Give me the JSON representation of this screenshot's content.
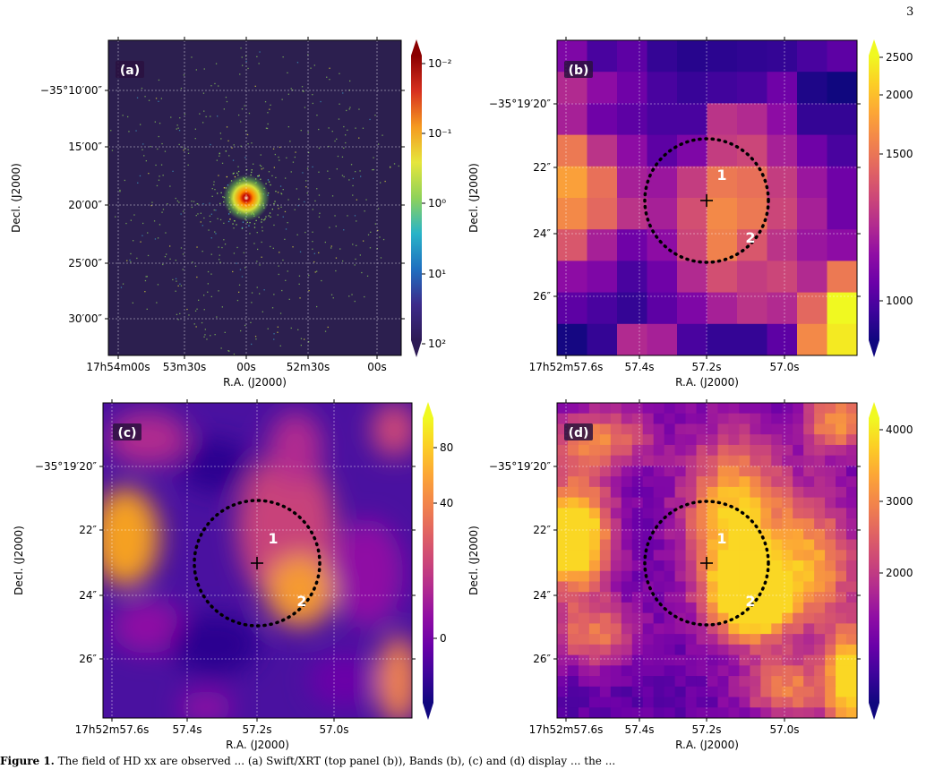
{
  "page_number": "3",
  "caption": {
    "label": "Figure 1.",
    "text": " The field of HD xx  are observed ... (a) Swift/XRT (top panel (b)), Bands (b), (c) and (d) display ... the ..."
  },
  "colors": {
    "colormap_a": [
      "#2d1a55",
      "#3c2a8a",
      "#1f6fc0",
      "#28b4c8",
      "#8fd25a",
      "#e6e63c",
      "#f59a20",
      "#d7301f",
      "#8b0000"
    ],
    "colormap_plasma": [
      "#10077f",
      "#3d049b",
      "#6a00a8",
      "#8f0da4",
      "#b12a90",
      "#cc4778",
      "#e16462",
      "#f2844b",
      "#fca636",
      "#fcce25",
      "#f0f921"
    ],
    "panel_a_background": "#2c1f4f",
    "marker": "#000000",
    "source_label": "#ffffff"
  },
  "chart_data": [
    {
      "type": "heatmap",
      "panel_label": "(a)",
      "xlabel": "R.A. (J2000)",
      "ylabel": "Decl. (J2000)",
      "xticks": [
        "17h54m00s",
        "53m30s",
        "00s",
        "52m30s",
        "00s"
      ],
      "yticks": [
        "−35°10′00″",
        "15′00″",
        "20′00″",
        "25′00″",
        "30′00″"
      ],
      "colorbar": {
        "scale": "log",
        "ticks": [
          "10⁻²",
          "10⁻¹",
          "10⁰",
          "10¹",
          "10²"
        ],
        "extend": "both"
      },
      "grid": true,
      "source": {
        "ra": "17h52m57.3s",
        "dec": "−35°19′23″",
        "description": "bright central source"
      }
    },
    {
      "type": "heatmap",
      "panel_label": "(b)",
      "xlabel": "R.A. (J2000)",
      "ylabel": "Decl. (J2000)",
      "xticks": [
        "17h52m57.6s",
        "57.4s",
        "57.2s",
        "57.0s"
      ],
      "yticks": [
        "−35°19′20″",
        "22″",
        "24″",
        "26″"
      ],
      "colorbar": {
        "scale": "log",
        "ticks": [
          "1000",
          "1500",
          "2000",
          "2500"
        ],
        "range": [
          870,
          2600
        ],
        "extend": "both"
      },
      "grid": true,
      "cells": [
        [
          1150,
          1000,
          1050,
          950,
          920,
          930,
          940,
          950,
          1000,
          1050
        ],
        [
          1350,
          1200,
          1100,
          1000,
          960,
          980,
          1000,
          1100,
          900,
          870
        ],
        [
          1300,
          1100,
          1050,
          1000,
          1000,
          1400,
          1350,
          1200,
          950,
          950
        ],
        [
          1800,
          1400,
          1200,
          1050,
          1150,
          1450,
          1500,
          1300,
          1100,
          1000
        ],
        [
          2050,
          1750,
          1300,
          1250,
          1450,
          1800,
          1750,
          1450,
          1250,
          1100
        ],
        [
          1900,
          1700,
          1400,
          1300,
          1550,
          1900,
          1800,
          1500,
          1300,
          1100
        ],
        [
          1600,
          1300,
          1100,
          1200,
          1500,
          1850,
          1600,
          1400,
          1250,
          1200
        ],
        [
          1200,
          1150,
          1000,
          1100,
          1350,
          1550,
          1450,
          1500,
          1350,
          1800
        ],
        [
          1050,
          1000,
          950,
          1050,
          1150,
          1300,
          1400,
          1350,
          1700,
          2600
        ],
        [
          880,
          950,
          1350,
          1300,
          1000,
          950,
          950,
          1050,
          1900,
          2500
        ]
      ],
      "circle": {
        "style": "dotted",
        "center": "17h52m57.22s −35°19′23.0″",
        "radius_arcsec": 2.0
      },
      "sources": [
        {
          "label": "1"
        },
        {
          "label": "2"
        }
      ]
    },
    {
      "type": "heatmap",
      "panel_label": "(c)",
      "xlabel": "R.A. (J2000)",
      "ylabel": "Decl. (J2000)",
      "xticks": [
        "17h52m57.6s",
        "57.4s",
        "57.2s",
        "57.0s"
      ],
      "yticks": [
        "−35°19′20″",
        "22″",
        "24″",
        "26″"
      ],
      "colorbar": {
        "scale": "symlog",
        "ticks": [
          "0",
          "40",
          "80"
        ],
        "range": [
          -15,
          100
        ],
        "extend": "both"
      },
      "grid": true,
      "circle": {
        "style": "dotted",
        "center": "17h52m57.22s −35°19′23.0″",
        "radius_arcsec": 2.0
      },
      "sources": [
        {
          "label": "1"
        },
        {
          "label": "2"
        }
      ]
    },
    {
      "type": "heatmap",
      "panel_label": "(d)",
      "xlabel": "R.A. (J2000)",
      "ylabel": "Decl. (J2000)",
      "xticks": [
        "17h52m57.6s",
        "57.4s",
        "57.2s",
        "57.0s"
      ],
      "yticks": [
        "−35°19′20″",
        "22″",
        "24″",
        "26″"
      ],
      "colorbar": {
        "scale": "log",
        "ticks": [
          "2000",
          "3000",
          "4000"
        ],
        "range": [
          900,
          4500
        ],
        "extend": "both"
      },
      "grid": true,
      "circle": {
        "style": "dotted",
        "center": "17h52m57.22s −35°19′23.0″",
        "radius_arcsec": 2.0
      },
      "sources": [
        {
          "label": "1"
        },
        {
          "label": "2"
        }
      ]
    }
  ]
}
